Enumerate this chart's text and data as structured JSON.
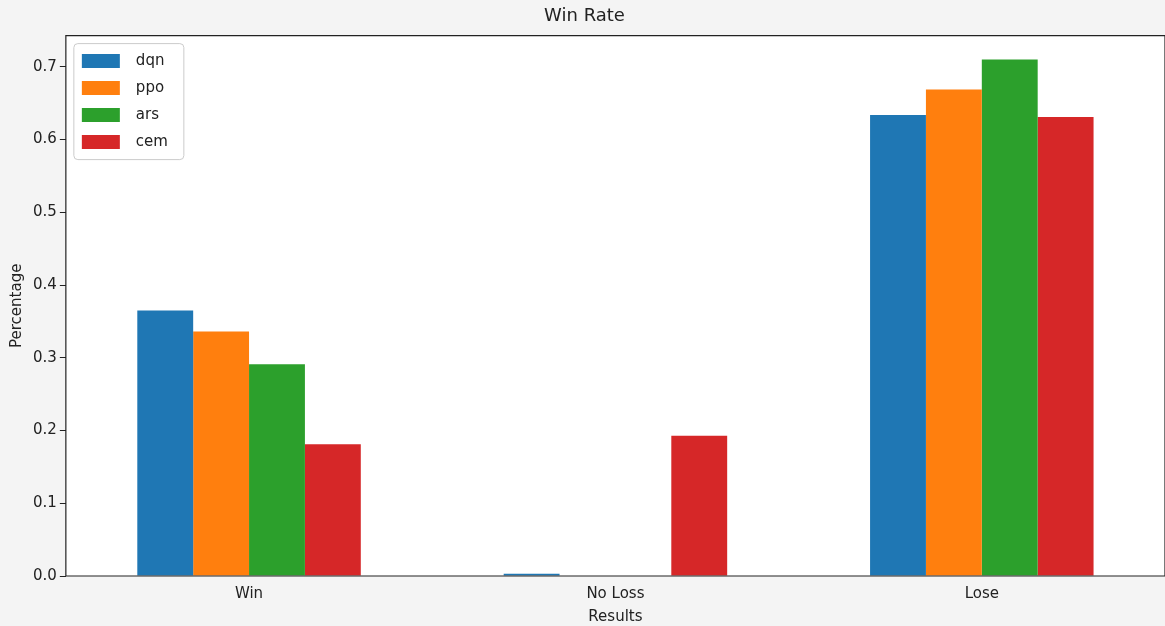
{
  "chart_data": {
    "type": "bar",
    "title": "Win Rate",
    "xlabel": "Results",
    "ylabel": "Percentage",
    "categories": [
      "Win",
      "No Loss",
      "Lose"
    ],
    "series": [
      {
        "name": "dqn",
        "color": "#1f77b4",
        "values": [
          0.365,
          0.003,
          0.634
        ]
      },
      {
        "name": "ppo",
        "color": "#ff7f0e",
        "values": [
          0.336,
          0,
          0.669
        ]
      },
      {
        "name": "ars",
        "color": "#2ca02c",
        "values": [
          0.291,
          0,
          0.71
        ]
      },
      {
        "name": "cem",
        "color": "#d62728",
        "values": [
          0.181,
          0.193,
          0.631
        ]
      }
    ],
    "ylim": [
      0,
      0.743
    ],
    "yticks": [
      {
        "value": 0,
        "label": "0.0"
      },
      0.1,
      0.2,
      0.3,
      0.4,
      0.5,
      0.6,
      0.7
    ],
    "grid": false,
    "legend": "top left"
  }
}
